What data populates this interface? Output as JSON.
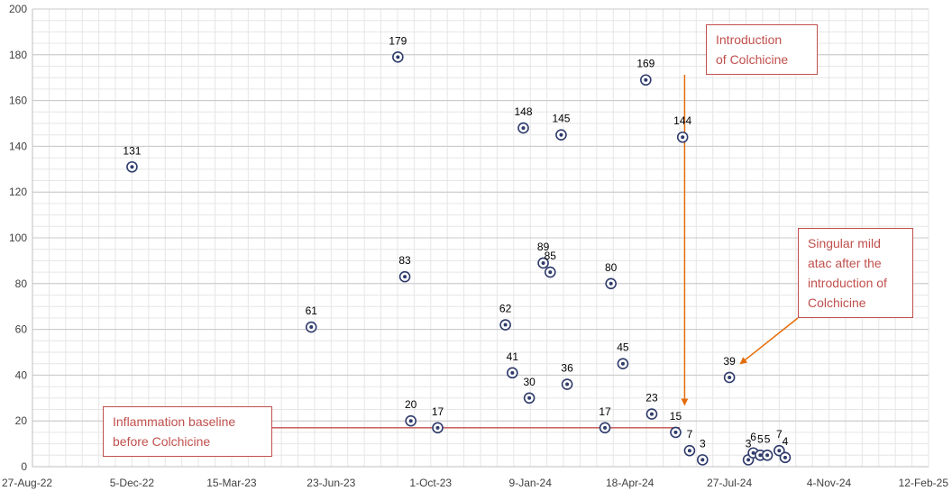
{
  "chart_data": {
    "type": "scatter",
    "title": "",
    "xlabel": "",
    "ylabel": "",
    "xlim": [
      "2022-08-27",
      "2025-02-12"
    ],
    "ylim": [
      0,
      200
    ],
    "y_ticks": [
      0,
      20,
      40,
      60,
      80,
      100,
      120,
      140,
      160,
      180,
      200
    ],
    "x_ticks": [
      {
        "date": "2022-08-27",
        "label": "27-Aug-22"
      },
      {
        "date": "2022-12-05",
        "label": "5-Dec-22"
      },
      {
        "date": "2023-03-15",
        "label": "15-Mar-23"
      },
      {
        "date": "2023-06-23",
        "label": "23-Jun-23"
      },
      {
        "date": "2023-10-01",
        "label": "1-Oct-23"
      },
      {
        "date": "2024-01-09",
        "label": "9-Jan-24"
      },
      {
        "date": "2024-04-18",
        "label": "18-Apr-24"
      },
      {
        "date": "2024-07-27",
        "label": "27-Jul-24"
      },
      {
        "date": "2024-11-04",
        "label": "4-Nov-24"
      },
      {
        "date": "2025-02-12",
        "label": "12-Feb-25"
      }
    ],
    "grid": true,
    "marker_color": "#2f3b6b",
    "points": [
      {
        "x": "2022-12-05",
        "y": 131
      },
      {
        "x": "2023-06-03",
        "y": 61
      },
      {
        "x": "2023-08-29",
        "y": 179
      },
      {
        "x": "2023-09-05",
        "y": 83
      },
      {
        "x": "2023-09-11",
        "y": 20
      },
      {
        "x": "2023-10-08",
        "y": 17
      },
      {
        "x": "2023-12-15",
        "y": 62
      },
      {
        "x": "2023-12-22",
        "y": 41
      },
      {
        "x": "2024-01-02",
        "y": 148
      },
      {
        "x": "2024-01-08",
        "y": 30
      },
      {
        "x": "2024-01-22",
        "y": 89
      },
      {
        "x": "2024-01-29",
        "y": 85
      },
      {
        "x": "2024-02-09",
        "y": 145
      },
      {
        "x": "2024-02-15",
        "y": 36
      },
      {
        "x": "2024-03-24",
        "y": 17
      },
      {
        "x": "2024-03-30",
        "y": 80
      },
      {
        "x": "2024-04-11",
        "y": 45
      },
      {
        "x": "2024-05-04",
        "y": 169
      },
      {
        "x": "2024-05-10",
        "y": 23
      },
      {
        "x": "2024-06-03",
        "y": 15
      },
      {
        "x": "2024-06-10",
        "y": 144
      },
      {
        "x": "2024-06-17",
        "y": 7
      },
      {
        "x": "2024-06-30",
        "y": 3
      },
      {
        "x": "2024-07-27",
        "y": 39
      },
      {
        "x": "2024-08-15",
        "y": 3
      },
      {
        "x": "2024-08-20",
        "y": 6
      },
      {
        "x": "2024-08-27",
        "y": 5
      },
      {
        "x": "2024-09-03",
        "y": 5
      },
      {
        "x": "2024-09-15",
        "y": 7
      },
      {
        "x": "2024-09-21",
        "y": 4
      }
    ],
    "annotations": [
      {
        "id": "colchicine",
        "text": "Introduction\nof Colchicine",
        "color": "#c0504d",
        "arrow_x": "2024-06-12",
        "arrow_y": 27
      },
      {
        "id": "baseline",
        "text": "Inflammation baseline\nbefore Colchicine",
        "color": "#c0504d",
        "line_y": 17,
        "line_end_x": "2024-06-07"
      },
      {
        "id": "mild",
        "text": "Singular mild\natac after the\nintroduction of\nColchicine",
        "color": "#c0504d",
        "arrow_to_x": "2024-08-07",
        "arrow_to_y": 45
      }
    ]
  }
}
